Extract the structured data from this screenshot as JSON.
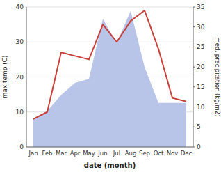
{
  "chart_data": {
    "type": "line",
    "categories": [
      "Jan",
      "Feb",
      "Mar",
      "Apr",
      "May",
      "Jun",
      "Jul",
      "Aug",
      "Sep",
      "Oct",
      "Nov",
      "Dec"
    ],
    "series": [
      {
        "type": "area",
        "color": "#b8c4e8",
        "axis": "y2",
        "values": [
          7,
          9,
          13,
          16,
          17,
          32,
          26,
          34,
          20,
          11,
          11,
          11
        ]
      },
      {
        "type": "line",
        "color": "#c8403a",
        "values": [
          8,
          10,
          27,
          26,
          25,
          35,
          30,
          36,
          39,
          28,
          14,
          13
        ]
      }
    ],
    "xlabel": "date (month)",
    "ylabel": "max temp (C)",
    "y2label": "med. precipitation (kg/m2)",
    "ylim": [
      0,
      40
    ],
    "yticks": [
      0,
      10,
      20,
      30,
      40
    ],
    "y2lim": [
      0,
      35
    ],
    "y2ticks": [
      0,
      5,
      10,
      15,
      20,
      25,
      30,
      35
    ],
    "grid": true
  }
}
